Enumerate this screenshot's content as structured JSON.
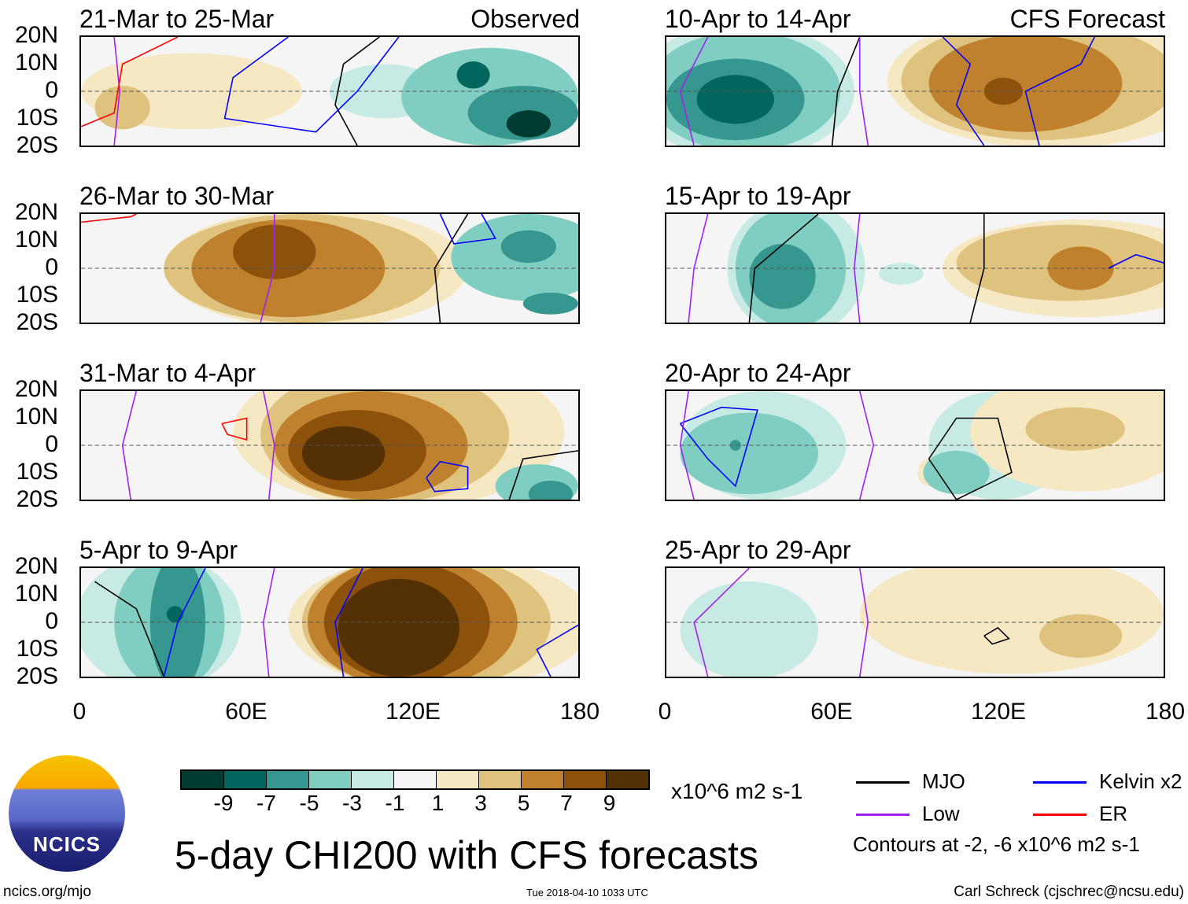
{
  "panels": [
    {
      "title": "21-Mar to 25-Mar",
      "tag": "Observed",
      "blobs": [
        [
          40,
          0,
          40,
          14,
          1
        ],
        [
          15,
          -6,
          10,
          8,
          3
        ],
        [
          110,
          0,
          20,
          10,
          -1
        ],
        [
          148,
          -2,
          32,
          18,
          -3
        ],
        [
          160,
          -8,
          20,
          10,
          -5
        ],
        [
          142,
          6,
          6,
          5,
          -7
        ],
        [
          162,
          -12,
          8,
          5,
          -9
        ]
      ],
      "lines": [
        {
          "type": "mjo",
          "pts": [
            [
              100,
              -20
            ],
            [
              92,
              -5
            ],
            [
              95,
              10
            ],
            [
              108,
              20
            ]
          ]
        },
        {
          "type": "kelvin",
          "pts": [
            [
              75,
              20
            ],
            [
              55,
              5
            ],
            [
              52,
              -10
            ],
            [
              85,
              -15
            ],
            [
              100,
              0
            ],
            [
              115,
              20
            ]
          ]
        },
        {
          "type": "low",
          "pts": [
            [
              12,
              20
            ],
            [
              14,
              0
            ],
            [
              12,
              -20
            ]
          ]
        },
        {
          "type": "er",
          "pts": [
            [
              0,
              -13
            ],
            [
              12,
              -8
            ],
            [
              15,
              10
            ],
            [
              35,
              20
            ]
          ]
        }
      ]
    },
    {
      "title": "26-Mar to 30-Mar",
      "tag": "",
      "blobs": [
        [
          85,
          0,
          55,
          22,
          1
        ],
        [
          80,
          0,
          50,
          20,
          3
        ],
        [
          75,
          0,
          35,
          18,
          5
        ],
        [
          70,
          6,
          15,
          10,
          7
        ],
        [
          162,
          4,
          28,
          16,
          -3
        ],
        [
          162,
          8,
          10,
          6,
          -5
        ],
        [
          170,
          -13,
          10,
          4,
          -5
        ]
      ],
      "lines": [
        {
          "type": "low",
          "pts": [
            [
              65,
              -20
            ],
            [
              70,
              0
            ],
            [
              70,
              20
            ]
          ]
        },
        {
          "type": "mjo",
          "pts": [
            [
              130,
              -20
            ],
            [
              128,
              0
            ],
            [
              140,
              20
            ]
          ]
        },
        {
          "type": "kelvin",
          "pts": [
            [
              130,
              20
            ],
            [
              135,
              9
            ],
            [
              150,
              11
            ],
            [
              145,
              20
            ]
          ]
        },
        {
          "type": "er",
          "pts": [
            [
              0,
              17
            ],
            [
              18,
              19
            ],
            [
              20,
              20
            ]
          ]
        }
      ]
    },
    {
      "title": "31-Mar to 4-Apr",
      "tag": "",
      "blobs": [
        [
          115,
          5,
          60,
          28,
          1
        ],
        [
          110,
          4,
          45,
          25,
          3
        ],
        [
          105,
          0,
          35,
          20,
          5
        ],
        [
          100,
          -2,
          25,
          15,
          7
        ],
        [
          95,
          -3,
          15,
          10,
          9
        ],
        [
          165,
          -15,
          15,
          8,
          -3
        ],
        [
          170,
          -18,
          8,
          5,
          -5
        ]
      ],
      "lines": [
        {
          "type": "low",
          "pts": [
            [
              18,
              -20
            ],
            [
              15,
              0
            ],
            [
              20,
              20
            ]
          ]
        },
        {
          "type": "low",
          "pts": [
            [
              68,
              -20
            ],
            [
              70,
              0
            ],
            [
              66,
              20
            ]
          ]
        },
        {
          "type": "kelvin",
          "pts": [
            [
              125,
              -12
            ],
            [
              130,
              -6
            ],
            [
              140,
              -8
            ],
            [
              140,
              -16
            ],
            [
              128,
              -17
            ],
            [
              125,
              -12
            ]
          ]
        },
        {
          "type": "mjo",
          "pts": [
            [
              155,
              -20
            ],
            [
              160,
              -5
            ],
            [
              180,
              -2
            ]
          ]
        },
        {
          "type": "er",
          "pts": [
            [
              51,
              8
            ],
            [
              60,
              10
            ],
            [
              60,
              2
            ],
            [
              53,
              4
            ],
            [
              51,
              8
            ]
          ]
        }
      ]
    },
    {
      "title": "5-Apr to 9-Apr",
      "tag": "",
      "blobs": [
        [
          130,
          0,
          55,
          25,
          1
        ],
        [
          125,
          0,
          45,
          25,
          3
        ],
        [
          120,
          0,
          38,
          24,
          5
        ],
        [
          118,
          0,
          30,
          22,
          7
        ],
        [
          115,
          -2,
          22,
          18,
          9
        ],
        [
          28,
          0,
          30,
          25,
          -1
        ],
        [
          32,
          0,
          20,
          25,
          -3
        ],
        [
          35,
          0,
          10,
          25,
          -5
        ],
        [
          34,
          3,
          3,
          3,
          -7
        ]
      ],
      "lines": [
        {
          "type": "mjo",
          "pts": [
            [
              5,
              15
            ],
            [
              20,
              5
            ],
            [
              30,
              -20
            ]
          ]
        },
        {
          "type": "kelvin",
          "pts": [
            [
              45,
              20
            ],
            [
              35,
              0
            ],
            [
              30,
              -20
            ]
          ]
        },
        {
          "type": "kelvin",
          "pts": [
            [
              102,
              20
            ],
            [
              92,
              0
            ],
            [
              95,
              -20
            ]
          ]
        },
        {
          "type": "low",
          "pts": [
            [
              70,
              20
            ],
            [
              66,
              0
            ],
            [
              68,
              -20
            ]
          ]
        },
        {
          "type": "kelvin",
          "pts": [
            [
              180,
              -1
            ],
            [
              165,
              -10
            ],
            [
              170,
              -20
            ]
          ]
        }
      ]
    },
    {
      "title": "10-Apr to 14-Apr",
      "tag": "CFS Forecast",
      "blobs": [
        [
          28,
          0,
          40,
          25,
          -1
        ],
        [
          28,
          0,
          35,
          22,
          -3
        ],
        [
          25,
          -3,
          25,
          15,
          -5
        ],
        [
          25,
          -3,
          14,
          9,
          -7
        ],
        [
          140,
          4,
          60,
          25,
          1
        ],
        [
          135,
          4,
          50,
          22,
          3
        ],
        [
          130,
          3,
          35,
          18,
          5
        ],
        [
          122,
          0,
          7,
          5,
          7
        ]
      ],
      "lines": [
        {
          "type": "mjo",
          "pts": [
            [
              60,
              -20
            ],
            [
              62,
              0
            ],
            [
              70,
              20
            ]
          ]
        },
        {
          "type": "low",
          "pts": [
            [
              73,
              -20
            ],
            [
              70,
              0
            ],
            [
              70,
              20
            ]
          ]
        },
        {
          "type": "low",
          "pts": [
            [
              10,
              -20
            ],
            [
              5,
              0
            ],
            [
              15,
              20
            ]
          ]
        },
        {
          "type": "kelvin",
          "pts": [
            [
              115,
              -20
            ],
            [
              105,
              -5
            ],
            [
              110,
              10
            ],
            [
              100,
              20
            ]
          ]
        },
        {
          "type": "kelvin",
          "pts": [
            [
              135,
              -20
            ],
            [
              130,
              0
            ],
            [
              150,
              10
            ],
            [
              155,
              20
            ]
          ]
        }
      ]
    },
    {
      "title": "15-Apr to 19-Apr",
      "tag": "",
      "blobs": [
        [
          47,
          0,
          25,
          25,
          -1
        ],
        [
          45,
          0,
          20,
          22,
          -3
        ],
        [
          42,
          -3,
          12,
          12,
          -5
        ],
        [
          150,
          0,
          50,
          18,
          1
        ],
        [
          145,
          2,
          40,
          14,
          3
        ],
        [
          150,
          0,
          12,
          8,
          5
        ],
        [
          85,
          -2,
          8,
          4,
          -1
        ]
      ],
      "lines": [
        {
          "type": "mjo",
          "pts": [
            [
              30,
              -20
            ],
            [
              32,
              0
            ],
            [
              55,
              20
            ]
          ]
        },
        {
          "type": "mjo",
          "pts": [
            [
              110,
              -20
            ],
            [
              115,
              0
            ],
            [
              115,
              20
            ]
          ]
        },
        {
          "type": "low",
          "pts": [
            [
              8,
              -20
            ],
            [
              10,
              0
            ],
            [
              15,
              20
            ]
          ]
        },
        {
          "type": "low",
          "pts": [
            [
              70,
              -20
            ],
            [
              68,
              0
            ],
            [
              70,
              20
            ]
          ]
        },
        {
          "type": "kelvin",
          "pts": [
            [
              160,
              0
            ],
            [
              170,
              5
            ],
            [
              180,
              2
            ]
          ]
        }
      ]
    },
    {
      "title": "20-Apr to 24-Apr",
      "tag": "",
      "blobs": [
        [
          35,
          0,
          30,
          20,
          -1
        ],
        [
          30,
          -3,
          25,
          15,
          -3
        ],
        [
          25,
          0,
          2,
          2,
          -5
        ],
        [
          95,
          -10,
          4,
          5,
          1
        ],
        [
          120,
          0,
          25,
          20,
          -1
        ],
        [
          105,
          -10,
          12,
          8,
          -3
        ],
        [
          150,
          5,
          40,
          22,
          1
        ],
        [
          148,
          6,
          18,
          8,
          3
        ]
      ],
      "lines": [
        {
          "type": "kelvin",
          "pts": [
            [
              5,
              8
            ],
            [
              20,
              14
            ],
            [
              33,
              13
            ],
            [
              25,
              -15
            ],
            [
              15,
              -5
            ],
            [
              5,
              8
            ]
          ]
        },
        {
          "type": "mjo",
          "pts": [
            [
              95,
              -5
            ],
            [
              105,
              -20
            ],
            [
              125,
              -10
            ],
            [
              120,
              10
            ],
            [
              105,
              10
            ],
            [
              95,
              -5
            ]
          ]
        },
        {
          "type": "low",
          "pts": [
            [
              10,
              -20
            ],
            [
              5,
              0
            ],
            [
              8,
              20
            ]
          ]
        },
        {
          "type": "low",
          "pts": [
            [
              70,
              -20
            ],
            [
              75,
              0
            ],
            [
              70,
              20
            ]
          ]
        }
      ]
    },
    {
      "title": "25-Apr to 29-Apr",
      "tag": "",
      "blobs": [
        [
          30,
          -3,
          25,
          18,
          -1
        ],
        [
          125,
          3,
          55,
          22,
          1
        ],
        [
          150,
          -5,
          15,
          8,
          3
        ],
        [
          90,
          -8,
          8,
          4,
          1
        ]
      ],
      "lines": [
        {
          "type": "low",
          "pts": [
            [
              15,
              -20
            ],
            [
              10,
              0
            ],
            [
              30,
              20
            ]
          ]
        },
        {
          "type": "low",
          "pts": [
            [
              70,
              -20
            ],
            [
              73,
              0
            ],
            [
              70,
              20
            ]
          ]
        },
        {
          "type": "mjo",
          "pts": [
            [
              115,
              -5
            ],
            [
              118,
              -8
            ],
            [
              124,
              -6
            ],
            [
              120,
              -2
            ],
            [
              115,
              -5
            ]
          ]
        }
      ]
    }
  ],
  "yticks": [
    "20N",
    "10N",
    "0",
    "10S",
    "20S"
  ],
  "xticks": [
    "0",
    "60E",
    "120E",
    "180"
  ],
  "colorbar": {
    "colors": [
      "#003c30",
      "#01665e",
      "#35978f",
      "#80cdc1",
      "#c7eae5",
      "#f5f5f5",
      "#f6e8c3",
      "#dfc27d",
      "#bf812d",
      "#8c510a",
      "#543005"
    ],
    "levels": [
      "-9",
      "-7",
      "-5",
      "-3",
      "-1",
      "1",
      "3",
      "5",
      "7",
      "9"
    ],
    "units": "x10^6 m2 s-1"
  },
  "legend": {
    "mjo": "MJO",
    "low": "Low",
    "kelvin": "Kelvin x2",
    "er": "ER",
    "note": "Contours at -2, -6 x10^6 m2 s-1",
    "colors": {
      "mjo": "#000000",
      "low": "#a020f0",
      "kelvin": "#0000ff",
      "er": "#ff0000"
    }
  },
  "title": "5-day CHI200 with CFS forecasts",
  "logo_text": "NCICS",
  "url": "ncics.org/mjo",
  "timestamp": "Tue 2018-04-10 1033 UTC",
  "author": "Carl Schreck (cjschrec@ncsu.edu)"
}
